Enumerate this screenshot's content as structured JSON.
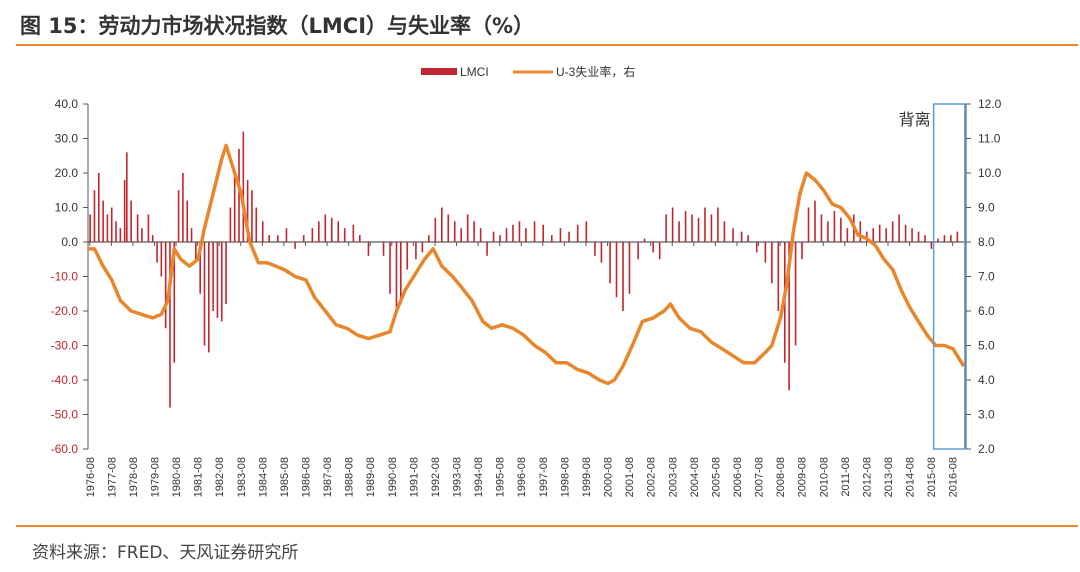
{
  "header": {
    "title": "图 15：劳动力市场状况指数（LMCI）与失业率（%）"
  },
  "footer": {
    "source": "资料来源：FRED、天风证券研究所"
  },
  "chart_data": {
    "type": "bar",
    "legend_position": "top-center",
    "grid": false,
    "colors": {
      "lmci": "#C0262D",
      "unemployment": "#E8862B",
      "annotation_box": "#5B9BD5",
      "rule": "#E8862B"
    },
    "x_tick_labels": [
      "1976-08",
      "1977-08",
      "1978-08",
      "1979-08",
      "1980-08",
      "1981-08",
      "1982-08",
      "1983-08",
      "1984-08",
      "1985-08",
      "1986-08",
      "1987-08",
      "1988-08",
      "1989-08",
      "1990-08",
      "1991-08",
      "1992-08",
      "1993-08",
      "1994-08",
      "1995-08",
      "1996-08",
      "1997-08",
      "1998-08",
      "1999-08",
      "2000-08",
      "2001-08",
      "2002-08",
      "2003-08",
      "2004-08",
      "2005-08",
      "2006-08",
      "2007-08",
      "2008-08",
      "2009-08",
      "2010-08",
      "2011-08",
      "2012-08",
      "2013-08",
      "2014-08",
      "2015-08",
      "2016-08"
    ],
    "x_range": [
      1976.5,
      2017.2
    ],
    "y_left": {
      "range": [
        -60,
        40
      ],
      "ticks": [
        -60,
        -50,
        -40,
        -30,
        -20,
        -10,
        0,
        10,
        20,
        30,
        40
      ],
      "tick_labels": [
        "-60.0",
        "-50.0",
        "-40.0",
        "-30.0",
        "-20.0",
        "-10.0",
        "0.0",
        "10.0",
        "20.0",
        "30.0",
        "40.0"
      ]
    },
    "y_right": {
      "range": [
        2,
        12
      ],
      "ticks": [
        2,
        3,
        4,
        5,
        6,
        7,
        8,
        9,
        10,
        11,
        12
      ],
      "tick_labels": [
        "2.0",
        "3.0",
        "4.0",
        "5.0",
        "6.0",
        "7.0",
        "8.0",
        "9.0",
        "10.0",
        "11.0",
        "12.0"
      ]
    },
    "series": [
      {
        "name": "LMCI",
        "type": "bar",
        "axis": "left",
        "points": [
          [
            1976.6,
            8
          ],
          [
            1976.8,
            15
          ],
          [
            1977.0,
            20
          ],
          [
            1977.2,
            12
          ],
          [
            1977.4,
            8
          ],
          [
            1977.6,
            10
          ],
          [
            1977.8,
            6
          ],
          [
            1978.0,
            4
          ],
          [
            1978.2,
            18
          ],
          [
            1978.3,
            26
          ],
          [
            1978.5,
            12
          ],
          [
            1978.8,
            8
          ],
          [
            1979.0,
            4
          ],
          [
            1979.3,
            8
          ],
          [
            1979.5,
            2
          ],
          [
            1979.7,
            -6
          ],
          [
            1979.9,
            -10
          ],
          [
            1980.1,
            -25
          ],
          [
            1980.3,
            -48
          ],
          [
            1980.5,
            -35
          ],
          [
            1980.7,
            15
          ],
          [
            1980.9,
            20
          ],
          [
            1981.1,
            12
          ],
          [
            1981.3,
            4
          ],
          [
            1981.5,
            -5
          ],
          [
            1981.7,
            -15
          ],
          [
            1981.9,
            -30
          ],
          [
            1982.1,
            -32
          ],
          [
            1982.3,
            -20
          ],
          [
            1982.5,
            -22
          ],
          [
            1982.7,
            -23
          ],
          [
            1982.9,
            -18
          ],
          [
            1983.1,
            10
          ],
          [
            1983.3,
            20
          ],
          [
            1983.5,
            27
          ],
          [
            1983.7,
            32
          ],
          [
            1983.9,
            18
          ],
          [
            1984.1,
            15
          ],
          [
            1984.3,
            10
          ],
          [
            1984.6,
            6
          ],
          [
            1984.9,
            2
          ],
          [
            1985.3,
            2
          ],
          [
            1985.7,
            4
          ],
          [
            1986.1,
            -2
          ],
          [
            1986.5,
            2
          ],
          [
            1986.9,
            4
          ],
          [
            1987.2,
            6
          ],
          [
            1987.5,
            8
          ],
          [
            1987.8,
            7
          ],
          [
            1988.1,
            6
          ],
          [
            1988.4,
            4
          ],
          [
            1988.8,
            5
          ],
          [
            1989.1,
            2
          ],
          [
            1989.5,
            -4
          ],
          [
            1989.9,
            0
          ],
          [
            1990.2,
            -4
          ],
          [
            1990.5,
            -15
          ],
          [
            1990.8,
            -20
          ],
          [
            1991.0,
            -18
          ],
          [
            1991.3,
            -8
          ],
          [
            1991.7,
            -5
          ],
          [
            1992.0,
            -3
          ],
          [
            1992.3,
            2
          ],
          [
            1992.6,
            7
          ],
          [
            1992.9,
            10
          ],
          [
            1993.2,
            8
          ],
          [
            1993.5,
            6
          ],
          [
            1993.8,
            4
          ],
          [
            1994.1,
            8
          ],
          [
            1994.4,
            6
          ],
          [
            1994.7,
            4
          ],
          [
            1995.0,
            -4
          ],
          [
            1995.3,
            3
          ],
          [
            1995.6,
            2
          ],
          [
            1995.9,
            4
          ],
          [
            1996.2,
            5
          ],
          [
            1996.5,
            6
          ],
          [
            1996.8,
            4
          ],
          [
            1997.2,
            6
          ],
          [
            1997.6,
            5
          ],
          [
            1998.0,
            2
          ],
          [
            1998.4,
            4
          ],
          [
            1998.8,
            3
          ],
          [
            1999.2,
            5
          ],
          [
            1999.6,
            6
          ],
          [
            2000.0,
            -4
          ],
          [
            2000.3,
            -6
          ],
          [
            2000.7,
            -12
          ],
          [
            2001.0,
            -16
          ],
          [
            2001.3,
            -20
          ],
          [
            2001.6,
            -15
          ],
          [
            2002.0,
            -5
          ],
          [
            2002.3,
            1
          ],
          [
            2002.7,
            -3
          ],
          [
            2003.0,
            -5
          ],
          [
            2003.3,
            8
          ],
          [
            2003.6,
            10
          ],
          [
            2003.9,
            6
          ],
          [
            2004.2,
            9
          ],
          [
            2004.5,
            8
          ],
          [
            2004.8,
            7
          ],
          [
            2005.1,
            10
          ],
          [
            2005.4,
            8
          ],
          [
            2005.7,
            10
          ],
          [
            2006.0,
            6
          ],
          [
            2006.4,
            4
          ],
          [
            2006.8,
            3
          ],
          [
            2007.1,
            2
          ],
          [
            2007.5,
            -3
          ],
          [
            2007.9,
            -6
          ],
          [
            2008.2,
            -12
          ],
          [
            2008.5,
            -20
          ],
          [
            2008.8,
            -35
          ],
          [
            2009.0,
            -43
          ],
          [
            2009.3,
            -30
          ],
          [
            2009.6,
            -5
          ],
          [
            2009.9,
            10
          ],
          [
            2010.2,
            12
          ],
          [
            2010.5,
            8
          ],
          [
            2010.8,
            6
          ],
          [
            2011.1,
            9
          ],
          [
            2011.4,
            7
          ],
          [
            2011.7,
            4
          ],
          [
            2012.0,
            8
          ],
          [
            2012.3,
            6
          ],
          [
            2012.6,
            3
          ],
          [
            2012.9,
            4
          ],
          [
            2013.2,
            5
          ],
          [
            2013.5,
            4
          ],
          [
            2013.8,
            6
          ],
          [
            2014.1,
            8
          ],
          [
            2014.4,
            5
          ],
          [
            2014.7,
            4
          ],
          [
            2015.0,
            3
          ],
          [
            2015.3,
            2
          ],
          [
            2015.6,
            -2
          ],
          [
            2015.9,
            1
          ],
          [
            2016.2,
            2
          ],
          [
            2016.5,
            2
          ],
          [
            2016.8,
            3
          ]
        ]
      },
      {
        "name": "U-3失业率，右",
        "type": "line",
        "axis": "right",
        "points": [
          [
            1976.5,
            7.8
          ],
          [
            1976.8,
            7.8
          ],
          [
            1977.2,
            7.3
          ],
          [
            1977.6,
            6.9
          ],
          [
            1978.0,
            6.3
          ],
          [
            1978.5,
            6.0
          ],
          [
            1979.0,
            5.9
          ],
          [
            1979.5,
            5.8
          ],
          [
            1979.9,
            5.9
          ],
          [
            1980.2,
            6.3
          ],
          [
            1980.5,
            7.8
          ],
          [
            1980.8,
            7.5
          ],
          [
            1981.2,
            7.3
          ],
          [
            1981.6,
            7.5
          ],
          [
            1981.9,
            8.4
          ],
          [
            1982.3,
            9.4
          ],
          [
            1982.7,
            10.4
          ],
          [
            1982.9,
            10.8
          ],
          [
            1983.2,
            10.2
          ],
          [
            1983.6,
            9.4
          ],
          [
            1984.0,
            8.0
          ],
          [
            1984.4,
            7.4
          ],
          [
            1984.8,
            7.4
          ],
          [
            1985.2,
            7.3
          ],
          [
            1985.6,
            7.2
          ],
          [
            1986.1,
            7.0
          ],
          [
            1986.6,
            6.9
          ],
          [
            1987.0,
            6.4
          ],
          [
            1987.5,
            6.0
          ],
          [
            1988.0,
            5.6
          ],
          [
            1988.5,
            5.5
          ],
          [
            1989.0,
            5.3
          ],
          [
            1989.5,
            5.2
          ],
          [
            1990.0,
            5.3
          ],
          [
            1990.5,
            5.4
          ],
          [
            1990.8,
            6.0
          ],
          [
            1991.2,
            6.6
          ],
          [
            1991.7,
            7.1
          ],
          [
            1992.1,
            7.5
          ],
          [
            1992.5,
            7.8
          ],
          [
            1992.9,
            7.3
          ],
          [
            1993.4,
            7.0
          ],
          [
            1993.8,
            6.7
          ],
          [
            1994.3,
            6.3
          ],
          [
            1994.8,
            5.7
          ],
          [
            1995.2,
            5.5
          ],
          [
            1995.7,
            5.6
          ],
          [
            1996.2,
            5.5
          ],
          [
            1996.7,
            5.3
          ],
          [
            1997.2,
            5.0
          ],
          [
            1997.7,
            4.8
          ],
          [
            1998.2,
            4.5
          ],
          [
            1998.7,
            4.5
          ],
          [
            1999.2,
            4.3
          ],
          [
            1999.7,
            4.2
          ],
          [
            2000.2,
            4.0
          ],
          [
            2000.6,
            3.9
          ],
          [
            2000.9,
            4.0
          ],
          [
            2001.3,
            4.4
          ],
          [
            2001.8,
            5.1
          ],
          [
            2002.2,
            5.7
          ],
          [
            2002.7,
            5.8
          ],
          [
            2003.2,
            6.0
          ],
          [
            2003.5,
            6.2
          ],
          [
            2003.9,
            5.8
          ],
          [
            2004.4,
            5.5
          ],
          [
            2004.9,
            5.4
          ],
          [
            2005.4,
            5.1
          ],
          [
            2005.9,
            4.9
          ],
          [
            2006.4,
            4.7
          ],
          [
            2006.9,
            4.5
          ],
          [
            2007.4,
            4.5
          ],
          [
            2007.9,
            4.8
          ],
          [
            2008.2,
            5.0
          ],
          [
            2008.6,
            5.8
          ],
          [
            2008.9,
            6.8
          ],
          [
            2009.2,
            8.3
          ],
          [
            2009.5,
            9.4
          ],
          [
            2009.8,
            10.0
          ],
          [
            2010.2,
            9.8
          ],
          [
            2010.6,
            9.5
          ],
          [
            2011.0,
            9.1
          ],
          [
            2011.4,
            9.0
          ],
          [
            2011.8,
            8.7
          ],
          [
            2012.2,
            8.2
          ],
          [
            2012.6,
            8.1
          ],
          [
            2013.0,
            7.9
          ],
          [
            2013.4,
            7.5
          ],
          [
            2013.8,
            7.2
          ],
          [
            2014.2,
            6.6
          ],
          [
            2014.6,
            6.1
          ],
          [
            2015.0,
            5.7
          ],
          [
            2015.4,
            5.3
          ],
          [
            2015.8,
            5.0
          ],
          [
            2016.2,
            5.0
          ],
          [
            2016.6,
            4.9
          ],
          [
            2016.9,
            4.6
          ],
          [
            2017.1,
            4.4
          ]
        ]
      }
    ],
    "annotations": [
      {
        "label": "背离",
        "x_range": [
          2015.7,
          2017.15
        ],
        "y_right_range": [
          2,
          12
        ]
      }
    ]
  }
}
